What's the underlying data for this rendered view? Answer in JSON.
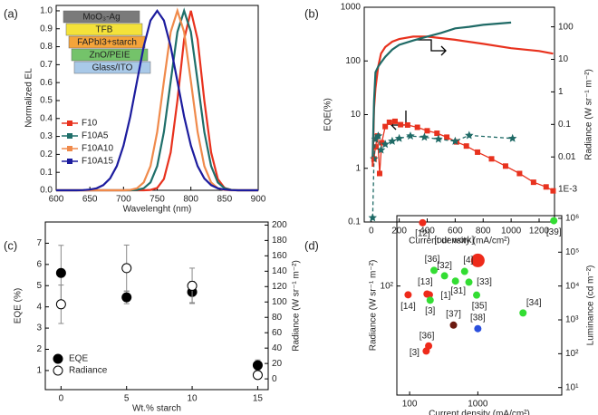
{
  "chart_data": [
    {
      "type": "line",
      "label": "(a)",
      "x": [
        600,
        610,
        620,
        630,
        640,
        650,
        660,
        670,
        680,
        690,
        700,
        710,
        720,
        730,
        740,
        750,
        760,
        770,
        780,
        790,
        800,
        810,
        820,
        830,
        840,
        850,
        860,
        870,
        880,
        890,
        900
      ],
      "xlim": [
        600,
        900
      ],
      "xticks": [
        600,
        650,
        700,
        750,
        800,
        850,
        900
      ],
      "ylim": [
        0,
        1.03
      ],
      "yticks": [
        {
          "value": 0,
          "label": "0.0"
        },
        0.1,
        0.2,
        0.3,
        0.4,
        0.5,
        0.6,
        0.7,
        0.8,
        0.9,
        {
          "value": 1,
          "label": "1.0"
        }
      ],
      "xlabel": "Wavelenght (nm)",
      "ylabel": "Normalized EL",
      "inset_layers": [
        "MoO₃-Ag",
        "TFB",
        "FAPbI3+starch",
        "ZnO/PEIE",
        "Glass/ITO"
      ],
      "series": [
        {
          "name": "F10",
          "color": "#e8321e",
          "values": [
            0,
            0,
            0,
            0,
            0,
            0,
            0,
            0,
            0,
            0,
            0,
            0,
            0,
            0,
            0.002,
            0.013,
            0.063,
            0.211,
            0.5,
            0.841,
            1,
            0.841,
            0.5,
            0.211,
            0.063,
            0.013,
            0.002,
            0,
            0,
            0,
            0
          ]
        },
        {
          "name": "F10A5",
          "color": "#1f6f6a",
          "values": [
            0,
            0,
            0,
            0,
            0,
            0,
            0,
            0,
            0,
            0,
            0,
            0,
            0.002,
            0.011,
            0.044,
            0.135,
            0.325,
            0.607,
            0.882,
            1,
            0.882,
            0.607,
            0.325,
            0.135,
            0.044,
            0.011,
            0.002,
            0,
            0,
            0,
            0
          ]
        },
        {
          "name": "F10A10",
          "color": "#f08a4b",
          "values": [
            0,
            0,
            0,
            0,
            0,
            0,
            0,
            0,
            0,
            0,
            0,
            0.002,
            0.011,
            0.044,
            0.135,
            0.325,
            0.607,
            0.882,
            1,
            0.882,
            0.607,
            0.325,
            0.135,
            0.044,
            0.011,
            0.002,
            0,
            0,
            0,
            0,
            0
          ]
        },
        {
          "name": "F10A15",
          "color": "#1c1c9e",
          "values": [
            0,
            0,
            0,
            0,
            0.001,
            0.004,
            0.011,
            0.029,
            0.066,
            0.135,
            0.249,
            0.411,
            0.607,
            0.801,
            0.946,
            1,
            0.946,
            0.801,
            0.607,
            0.411,
            0.249,
            0.135,
            0.066,
            0.029,
            0.011,
            0.004,
            0.001,
            0,
            0,
            0,
            0
          ]
        }
      ]
    },
    {
      "type": "line",
      "label": "(b)",
      "xlim": [
        -50,
        1310
      ],
      "xticks": [
        0,
        200,
        400,
        600,
        800,
        1000,
        1200
      ],
      "ylim": [
        0.1,
        1000
      ],
      "yscale": "log",
      "yticks": [
        0.1,
        1,
        10,
        100,
        1000
      ],
      "y2lim": [
        0.0001,
        400
      ],
      "y2scale": "log",
      "y2ticks": [
        {
          "value": 0.001,
          "label": "1E-3"
        },
        0.01,
        0.1,
        1,
        10,
        100
      ],
      "xlabel": "Current density (mA/cm²)",
      "ylabel": "EQE(%)",
      "y2label": "Radiance (W sr⁻¹ m⁻²)",
      "series": [
        {
          "color": "#e8321e",
          "marker": "square",
          "line": "solid",
          "x": [
            20,
            30,
            45,
            60,
            75,
            100,
            130,
            170,
            210,
            260,
            330,
            400,
            470,
            540,
            610,
            680,
            760,
            860,
            960,
            1060,
            1160,
            1250,
            1300
          ],
          "values": [
            1.5,
            2.5,
            4,
            0.8,
            3,
            6,
            7.2,
            7.5,
            6.5,
            6.4,
            5.8,
            5,
            4.5,
            3.8,
            3.1,
            2.6,
            2,
            1.5,
            1.1,
            0.8,
            0.55,
            0.45,
            0.38
          ]
        },
        {
          "color": "#1f6a66",
          "marker": "star",
          "line": "dash",
          "x": [
            10,
            20,
            30,
            50,
            70,
            100,
            150,
            200,
            280,
            380,
            480,
            600,
            700,
            1010
          ],
          "values": [
            0.12,
            1.5,
            3.5,
            4,
            2.2,
            2.8,
            3.2,
            3.6,
            4,
            3.8,
            3.5,
            3.2,
            4.1,
            3.6
          ]
        },
        {
          "color": "#e8321e",
          "axis": "y2",
          "line": "solid",
          "x": [
            10,
            20,
            30,
            50,
            70,
            100,
            150,
            200,
            300,
            400,
            500,
            600,
            800,
            1000,
            1200,
            1300
          ],
          "values": [
            0.005,
            0.3,
            1.3,
            6,
            15,
            24,
            35,
            42,
            50,
            50,
            45,
            40,
            30,
            22,
            18,
            15
          ]
        },
        {
          "color": "#1f6a66",
          "axis": "y2",
          "line": "solid",
          "x": [
            10,
            20,
            30,
            50,
            70,
            100,
            150,
            200,
            300,
            400,
            500,
            600,
            700,
            800,
            900,
            1000
          ],
          "values": [
            0.01,
            0.5,
            4,
            6,
            8,
            12,
            20,
            28,
            38,
            50,
            65,
            90,
            100,
            115,
            125,
            135
          ]
        }
      ]
    },
    {
      "type": "errorbar",
      "label": "(c)",
      "x": [
        0,
        5,
        10,
        15
      ],
      "xlim": [
        -1.2,
        15.8
      ],
      "xticks": [
        0,
        5,
        10,
        15
      ],
      "ylim": [
        0.1,
        8
      ],
      "yticks": [
        1,
        2,
        3,
        4,
        5,
        6,
        7
      ],
      "y2lim": [
        -14,
        204
      ],
      "y2ticks": [
        0,
        20,
        40,
        60,
        80,
        100,
        120,
        140,
        160,
        180,
        200
      ],
      "xlabel": "Wt.% starch",
      "ylabel": "EQE (%)",
      "y2label": "Radiance (W sr⁻¹ m⁻²)",
      "series": [
        {
          "name": "EQE",
          "color": "#000000",
          "marker": "filled",
          "values": [
            5.6,
            4.45,
            4.7,
            1.25
          ],
          "errors": [
            1.3,
            0.3,
            0.5,
            0.25
          ]
        },
        {
          "name": "Radiance",
          "color": "#000000",
          "marker": "open",
          "axis": "y2",
          "values": [
            97,
            144,
            121,
            5
          ],
          "errors": [
            25,
            30,
            23,
            5
          ]
        }
      ]
    },
    {
      "type": "scatter",
      "label": "(d)",
      "xscale": "log",
      "xlim": [
        65,
        17000
      ],
      "xticks": [
        100,
        1000
      ],
      "yscale": "log",
      "ylim": [
        0.06,
        12000
      ],
      "yticks": [
        {
          "value": 100,
          "label": "10²"
        }
      ],
      "y2scale": "log",
      "y2lim": [
        6,
        1200000
      ],
      "y2ticks": [
        {
          "value": 10,
          "label": "10¹"
        },
        {
          "value": 100,
          "label": "10²"
        },
        {
          "value": 1000,
          "label": "10³"
        },
        {
          "value": 10000,
          "label": "10⁴"
        },
        {
          "value": 100000,
          "label": "10⁵"
        },
        {
          "value": 1000000,
          "label": "10⁶"
        }
      ],
      "points_axis": "y2",
      "xlabel": "Current density (mA/cm²)",
      "ylabel": "Radiance (W sr⁻¹ m⁻²)",
      "y2label": "Luminance (cd m⁻²)",
      "points": [
        {
          "label": "[our work]",
          "x": 1000,
          "y": 57000,
          "color": "#ee2a1a",
          "large": true
        },
        {
          "label": "[12]",
          "x": 155,
          "y": 740000,
          "color": "#ee2a1a"
        },
        {
          "label": "[39]",
          "x": 13000,
          "y": 850000,
          "color": "#33dd33"
        },
        {
          "label": "[36]",
          "x": 228,
          "y": 29000,
          "color": "#33dd33"
        },
        {
          "label": "[32]",
          "x": 325,
          "y": 20000,
          "color": "#33dd33"
        },
        {
          "label": "[4]",
          "x": 640,
          "y": 27000,
          "color": "#33dd33"
        },
        {
          "label": "[33]",
          "x": 740,
          "y": 13000,
          "color": "#33dd33"
        },
        {
          "label": "[31]",
          "x": 470,
          "y": 14000,
          "color": "#33dd33"
        },
        {
          "label": "[35]",
          "x": 960,
          "y": 5400,
          "color": "#33dd33"
        },
        {
          "label": "[34]",
          "x": 4600,
          "y": 1600,
          "color": "#33dd33"
        },
        {
          "label": "[13]",
          "x": 180,
          "y": 5800,
          "color": "#ee2a1a"
        },
        {
          "label": "[1]",
          "x": 195,
          "y": 5500,
          "color": "#ee2a1a"
        },
        {
          "label": "[14]",
          "x": 95,
          "y": 5500,
          "color": "#ee2a1a"
        },
        {
          "label": "[3]",
          "x": 200,
          "y": 3800,
          "color": "#33dd33"
        },
        {
          "label": "[37]",
          "x": 440,
          "y": 700,
          "color": "#6b1a10"
        },
        {
          "label": "[38]",
          "x": 1000,
          "y": 550,
          "color": "#2a4fdd"
        },
        {
          "label": "[36]",
          "x": 190,
          "y": 170,
          "color": "#ee2a1a"
        },
        {
          "label": "[3]",
          "x": 175,
          "y": 120,
          "color": "#ee2a1a"
        }
      ]
    }
  ]
}
